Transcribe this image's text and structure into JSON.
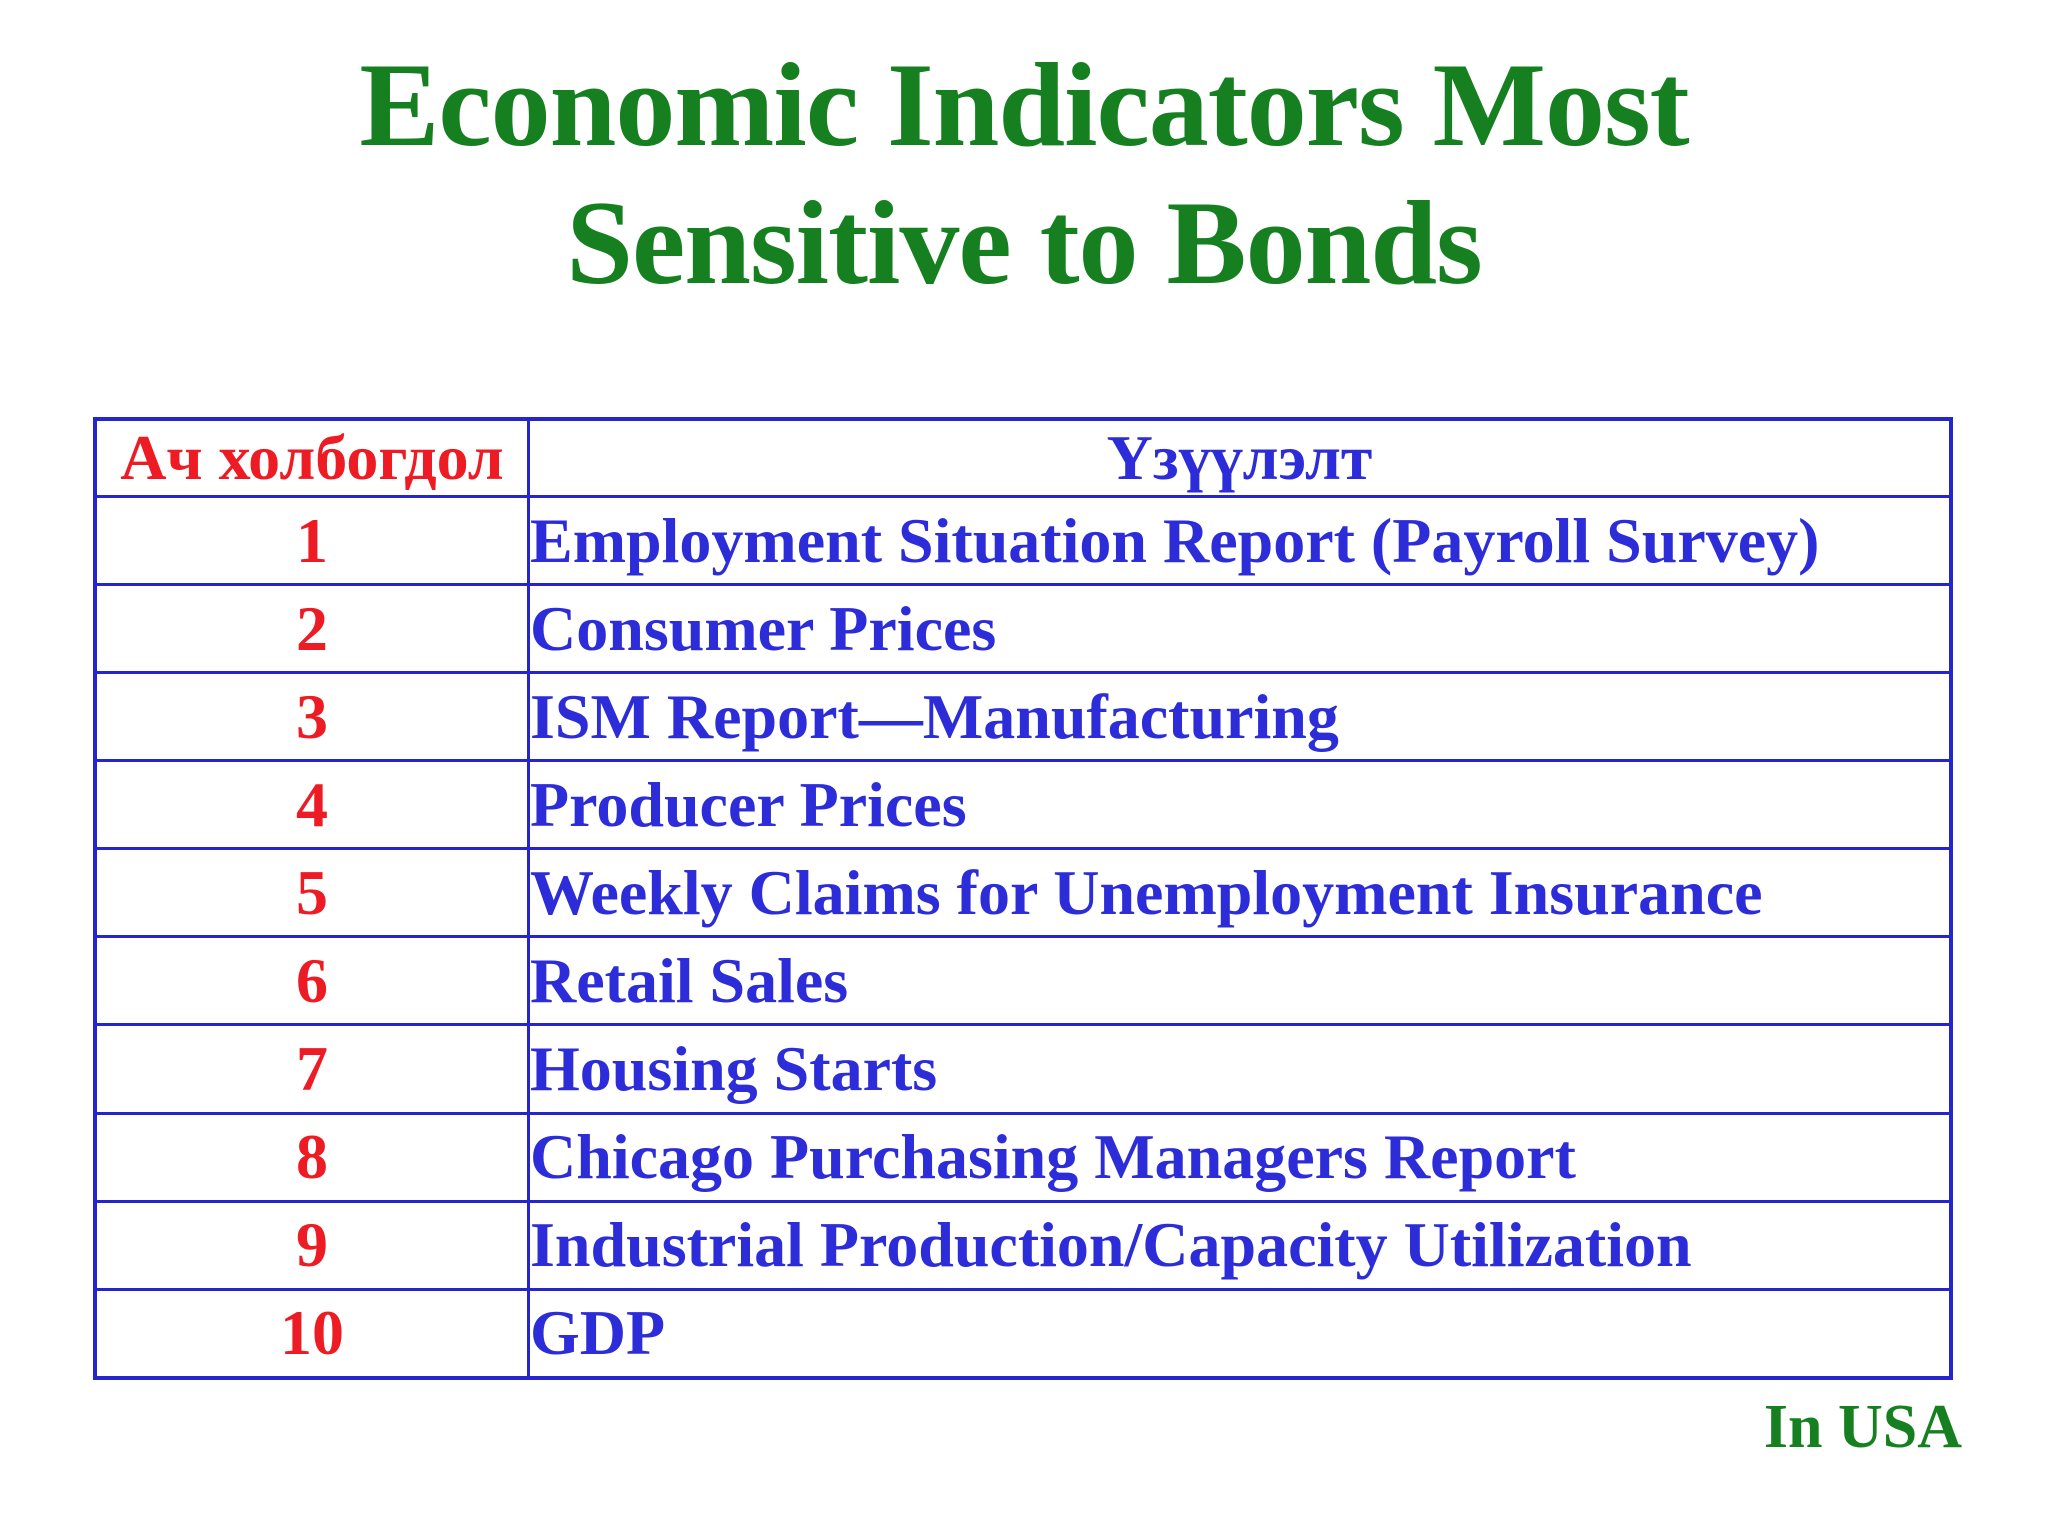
{
  "title": {
    "line1": "Economic Indicators Most",
    "line2": "Sensitive to Bonds"
  },
  "table": {
    "header": {
      "importance": "Ач холбогдол",
      "indicator": "Үзүүлэлт"
    },
    "rows": [
      {
        "rank": "1",
        "indicator": "Employment Situation Report (Payroll Survey)"
      },
      {
        "rank": "2",
        "indicator": "Consumer Prices"
      },
      {
        "rank": "3",
        "indicator": "ISM Report—Manufacturing"
      },
      {
        "rank": "4",
        "indicator": "Producer Prices"
      },
      {
        "rank": "5",
        "indicator": "Weekly Claims for Unemployment Insurance"
      },
      {
        "rank": "6",
        "indicator": "Retail Sales"
      },
      {
        "rank": "7",
        "indicator": "Housing Starts"
      },
      {
        "rank": "8",
        "indicator": "Chicago Purchasing Managers Report"
      },
      {
        "rank": "9",
        "indicator": "Industrial Production/Capacity Utilization"
      },
      {
        "rank": "10",
        "indicator": "GDP"
      }
    ]
  },
  "footer": {
    "note": "In USA"
  },
  "colors": {
    "bg": "#ffffff",
    "green": "#168021",
    "red": "#ed1c24",
    "blue-text": "#2c2cd8",
    "blue-border": "#2525cd"
  }
}
